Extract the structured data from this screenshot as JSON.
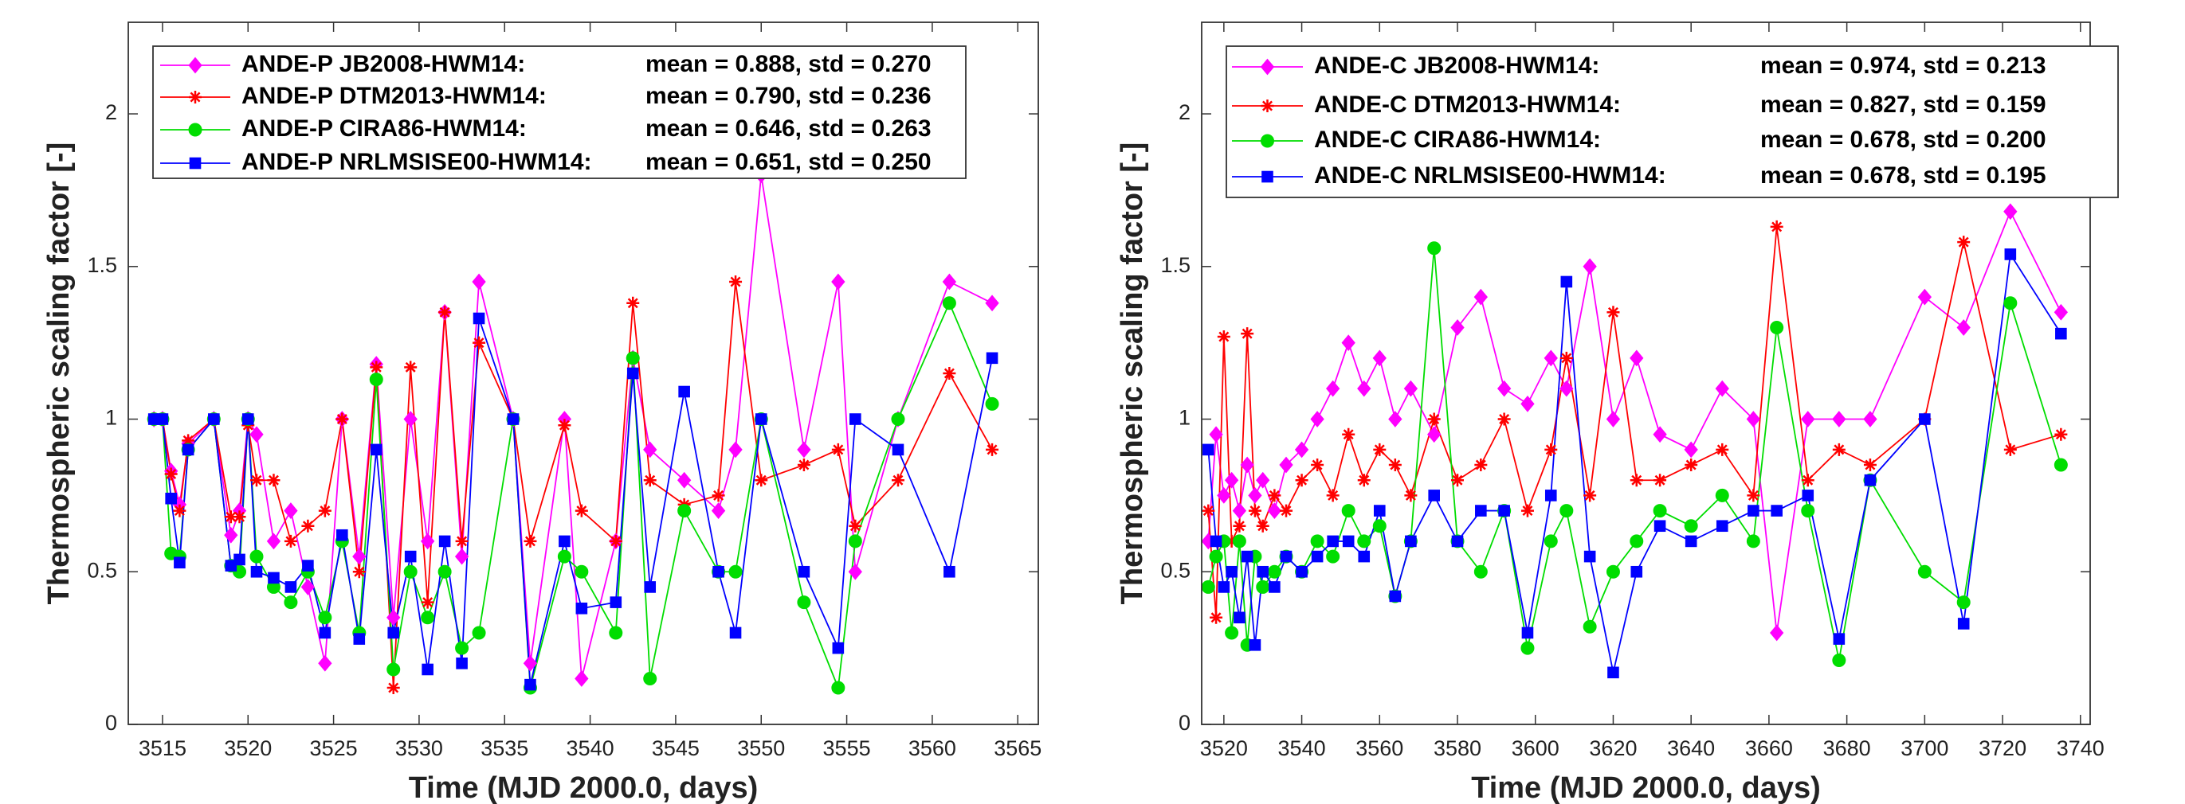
{
  "chart_data": [
    {
      "type": "line",
      "ylabel": "Thermospheric scaling factor [-]",
      "xlabel": "Time (MJD 2000.0, days)",
      "xlim": [
        3513,
        3566.2
      ],
      "ylim": [
        0,
        2.3
      ],
      "xticks": [
        3515,
        3520,
        3525,
        3530,
        3535,
        3540,
        3545,
        3550,
        3555,
        3560,
        3565
      ],
      "yticks": [
        0,
        0.5,
        1,
        1.5,
        2
      ],
      "x": [
        3514.5,
        3515,
        3515.5,
        3516,
        3516.5,
        3518,
        3519,
        3519.5,
        3520,
        3520.5,
        3521.5,
        3522.5,
        3523.5,
        3524.5,
        3525.5,
        3526.5,
        3527.5,
        3528.5,
        3529.5,
        3530.5,
        3531.5,
        3532.5,
        3533.5,
        3535.5,
        3536.5,
        3538.5,
        3539.5,
        3541.5,
        3542.5,
        3543.5,
        3545.5,
        3547.5,
        3548.5,
        3550,
        3552.5,
        3554.5,
        3555.5,
        3558,
        3561,
        3563.5
      ],
      "series": [
        {
          "name": "ANDE-P JB2008-HWM14:",
          "stats": "mean = 0.888, std = 0.270",
          "color": "#ff00ff",
          "marker": "diamond",
          "values": [
            1,
            1,
            0.83,
            0.72,
            0.92,
            1,
            0.62,
            0.7,
            1,
            0.95,
            0.6,
            0.7,
            0.45,
            0.2,
            1.0,
            0.55,
            1.18,
            0.35,
            1.0,
            0.6,
            1.35,
            0.55,
            1.45,
            1.0,
            0.2,
            1.0,
            0.15,
            0.6,
            1.2,
            0.9,
            0.8,
            0.7,
            0.9,
            1.8,
            0.9,
            1.45,
            0.5,
            1.0,
            1.45,
            1.38
          ]
        },
        {
          "name": "ANDE-P DTM2013-HWM14:",
          "stats": "mean = 0.790, std = 0.236",
          "color": "#ff0000",
          "marker": "asterisk",
          "values": [
            1,
            1,
            0.82,
            0.7,
            0.93,
            1,
            0.68,
            0.68,
            0.98,
            0.8,
            0.8,
            0.6,
            0.65,
            0.7,
            1.0,
            0.5,
            1.17,
            0.12,
            1.17,
            0.4,
            1.35,
            0.6,
            1.25,
            1.0,
            0.6,
            0.98,
            0.7,
            0.6,
            1.38,
            0.8,
            0.72,
            0.75,
            1.45,
            0.8,
            0.85,
            0.9,
            0.65,
            0.8,
            1.15,
            0.9
          ]
        },
        {
          "name": "ANDE-P CIRA86-HWM14:",
          "stats": "mean = 0.646, std = 0.263",
          "color": "#00dd00",
          "marker": "circle",
          "values": [
            1,
            1,
            0.56,
            0.55,
            0.9,
            1,
            0.52,
            0.5,
            1,
            0.55,
            0.45,
            0.4,
            0.5,
            0.35,
            0.6,
            0.3,
            1.13,
            0.18,
            0.5,
            0.35,
            0.5,
            0.25,
            0.3,
            1.0,
            0.12,
            0.55,
            0.5,
            0.3,
            1.2,
            0.15,
            0.7,
            0.5,
            0.5,
            1.0,
            0.4,
            0.12,
            0.6,
            1.0,
            1.38,
            1.05
          ]
        },
        {
          "name": "ANDE-P NRLMSISE00-HWM14:",
          "stats": "mean = 0.651, std = 0.250",
          "color": "#0000ff",
          "marker": "square",
          "values": [
            1,
            1,
            0.74,
            0.53,
            0.9,
            1,
            0.52,
            0.54,
            1,
            0.5,
            0.48,
            0.45,
            0.52,
            0.3,
            0.62,
            0.28,
            0.9,
            0.3,
            0.55,
            0.18,
            0.6,
            0.2,
            1.33,
            1.0,
            0.13,
            0.6,
            0.38,
            0.4,
            1.15,
            0.45,
            1.09,
            0.5,
            0.3,
            1.0,
            0.5,
            0.25,
            1.0,
            0.9,
            0.5,
            1.2
          ]
        }
      ]
    },
    {
      "type": "line",
      "ylabel": "Thermospheric scaling factor [-]",
      "xlabel": "Time (MJD 2000.0, days)",
      "xlim": [
        3514.3,
        3742.5
      ],
      "ylim": [
        0,
        2.3
      ],
      "xticks": [
        3520,
        3540,
        3560,
        3580,
        3600,
        3620,
        3640,
        3660,
        3680,
        3700,
        3720,
        3740
      ],
      "yticks": [
        0,
        0.5,
        1,
        1.5,
        2
      ],
      "x": [
        3516,
        3518,
        3520,
        3522,
        3524,
        3526,
        3528,
        3530,
        3533,
        3536,
        3540,
        3544,
        3548,
        3552,
        3556,
        3560,
        3564,
        3568,
        3574,
        3580,
        3586,
        3592,
        3598,
        3604,
        3608,
        3614,
        3620,
        3626,
        3632,
        3640,
        3648,
        3656,
        3662,
        3670,
        3678,
        3686,
        3700,
        3710,
        3722,
        3735
      ],
      "series": [
        {
          "name": "ANDE-C JB2008-HWM14:",
          "stats": "mean = 0.974, std = 0.213",
          "color": "#ff00ff",
          "marker": "diamond",
          "values": [
            0.6,
            0.95,
            0.75,
            0.8,
            0.7,
            0.85,
            0.75,
            0.8,
            0.7,
            0.85,
            0.9,
            1.0,
            1.1,
            1.25,
            1.1,
            1.2,
            1.0,
            1.1,
            0.95,
            1.3,
            1.4,
            1.1,
            1.05,
            1.2,
            1.1,
            1.5,
            1.0,
            1.2,
            0.95,
            0.9,
            1.1,
            1.0,
            0.3,
            1.0,
            1.0,
            1.0,
            1.4,
            1.3,
            1.68,
            1.35
          ]
        },
        {
          "name": "ANDE-C DTM2013-HWM14:",
          "stats": "mean = 0.827, std = 0.159",
          "color": "#ff0000",
          "marker": "asterisk",
          "values": [
            0.7,
            0.35,
            1.27,
            0.6,
            0.65,
            1.28,
            0.7,
            0.65,
            0.75,
            0.7,
            0.8,
            0.85,
            0.75,
            0.95,
            0.8,
            0.9,
            0.85,
            0.75,
            1.0,
            0.8,
            0.85,
            1.0,
            0.7,
            0.9,
            1.2,
            0.75,
            1.35,
            0.8,
            0.8,
            0.85,
            0.9,
            0.75,
            1.63,
            0.8,
            0.9,
            0.85,
            1.0,
            1.58,
            0.9,
            0.95
          ]
        },
        {
          "name": "ANDE-C CIRA86-HWM14:",
          "stats": "mean = 0.678, std = 0.200",
          "color": "#00dd00",
          "marker": "circle",
          "values": [
            0.45,
            0.55,
            0.6,
            0.3,
            0.6,
            0.26,
            0.55,
            0.45,
            0.5,
            0.55,
            0.5,
            0.6,
            0.55,
            0.7,
            0.6,
            0.65,
            0.42,
            0.6,
            1.56,
            0.6,
            0.5,
            0.7,
            0.25,
            0.6,
            0.7,
            0.32,
            0.5,
            0.6,
            0.7,
            0.65,
            0.75,
            0.6,
            1.3,
            0.7,
            0.21,
            0.8,
            0.5,
            0.4,
            1.38,
            0.85
          ]
        },
        {
          "name": "ANDE-C NRLMSISE00-HWM14:",
          "stats": "mean = 0.678, std = 0.195",
          "color": "#0000ff",
          "marker": "square",
          "values": [
            0.9,
            0.6,
            0.45,
            0.5,
            0.35,
            0.55,
            0.26,
            0.5,
            0.45,
            0.55,
            0.5,
            0.55,
            0.6,
            0.6,
            0.55,
            0.7,
            0.42,
            0.6,
            0.75,
            0.6,
            0.7,
            0.7,
            0.3,
            0.75,
            1.45,
            0.55,
            0.17,
            0.5,
            0.65,
            0.6,
            0.65,
            0.7,
            0.7,
            0.75,
            0.28,
            0.8,
            1.0,
            0.33,
            1.54,
            1.28
          ]
        }
      ]
    }
  ]
}
